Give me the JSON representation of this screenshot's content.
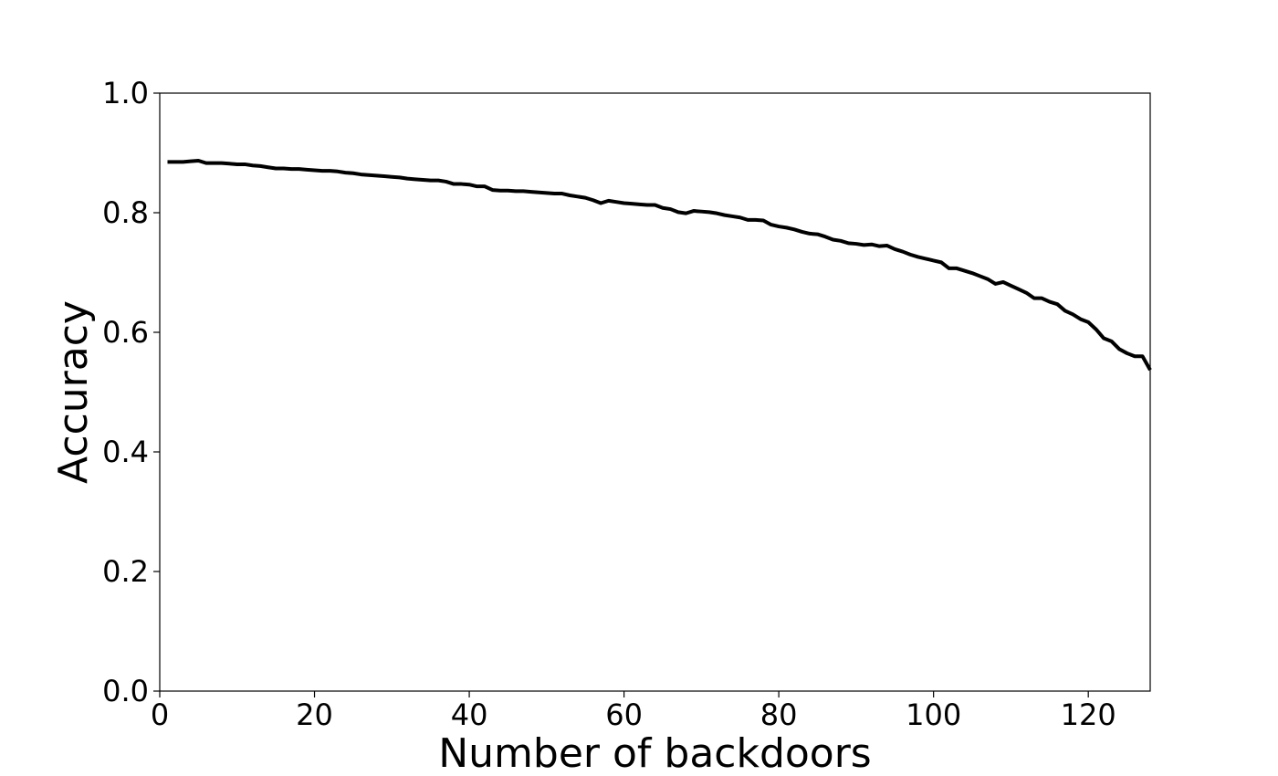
{
  "chart_data": {
    "type": "line",
    "title": "",
    "xlabel": "Number of backdoors",
    "ylabel": "Accuracy",
    "xlim": [
      0,
      128
    ],
    "ylim": [
      0.0,
      1.0
    ],
    "grid": false,
    "legend": "none",
    "x_ticks": [
      0,
      20,
      40,
      60,
      80,
      100,
      120
    ],
    "x_tick_labels": [
      "0",
      "20",
      "40",
      "60",
      "80",
      "100",
      "120"
    ],
    "y_ticks": [
      0.0,
      0.2,
      0.4,
      0.6,
      0.8,
      1.0
    ],
    "y_tick_labels": [
      "0.0",
      "0.2",
      "0.4",
      "0.6",
      "0.8",
      "1.0"
    ],
    "series": [
      {
        "color": "#000000",
        "x": [
          1,
          2,
          3,
          4,
          5,
          6,
          7,
          8,
          9,
          10,
          11,
          12,
          13,
          14,
          15,
          16,
          17,
          18,
          19,
          20,
          21,
          22,
          23,
          24,
          25,
          26,
          27,
          28,
          29,
          30,
          31,
          32,
          33,
          34,
          35,
          36,
          37,
          38,
          39,
          40,
          41,
          42,
          43,
          44,
          45,
          46,
          47,
          48,
          49,
          50,
          51,
          52,
          53,
          54,
          55,
          56,
          57,
          58,
          59,
          60,
          61,
          62,
          63,
          64,
          65,
          66,
          67,
          68,
          69,
          70,
          71,
          72,
          73,
          74,
          75,
          76,
          77,
          78,
          79,
          80,
          81,
          82,
          83,
          84,
          85,
          86,
          87,
          88,
          89,
          90,
          91,
          92,
          93,
          94,
          95,
          96,
          97,
          98,
          99,
          100,
          101,
          102,
          103,
          104,
          105,
          106,
          107,
          108,
          109,
          110,
          111,
          112,
          113,
          114,
          115,
          116,
          117,
          118,
          119,
          120,
          121,
          122,
          123,
          124,
          125,
          126,
          127,
          128
        ],
        "y": [
          0.885,
          0.885,
          0.885,
          0.886,
          0.887,
          0.883,
          0.883,
          0.883,
          0.882,
          0.881,
          0.881,
          0.879,
          0.878,
          0.876,
          0.874,
          0.874,
          0.873,
          0.873,
          0.872,
          0.871,
          0.87,
          0.87,
          0.869,
          0.867,
          0.866,
          0.864,
          0.863,
          0.862,
          0.861,
          0.86,
          0.859,
          0.857,
          0.856,
          0.855,
          0.854,
          0.854,
          0.852,
          0.848,
          0.848,
          0.847,
          0.844,
          0.844,
          0.838,
          0.837,
          0.837,
          0.836,
          0.836,
          0.835,
          0.834,
          0.833,
          0.832,
          0.832,
          0.829,
          0.827,
          0.825,
          0.821,
          0.816,
          0.82,
          0.818,
          0.816,
          0.815,
          0.814,
          0.813,
          0.813,
          0.808,
          0.806,
          0.801,
          0.799,
          0.803,
          0.802,
          0.801,
          0.799,
          0.796,
          0.794,
          0.792,
          0.788,
          0.788,
          0.787,
          0.78,
          0.777,
          0.775,
          0.772,
          0.768,
          0.765,
          0.764,
          0.76,
          0.755,
          0.753,
          0.749,
          0.748,
          0.746,
          0.747,
          0.744,
          0.745,
          0.739,
          0.735,
          0.73,
          0.726,
          0.723,
          0.72,
          0.717,
          0.707,
          0.707,
          0.703,
          0.699,
          0.694,
          0.689,
          0.681,
          0.684,
          0.678,
          0.672,
          0.666,
          0.657,
          0.657,
          0.651,
          0.647,
          0.636,
          0.63,
          0.622,
          0.617,
          0.605,
          0.59,
          0.585,
          0.572,
          0.565,
          0.56,
          0.56,
          0.537
        ]
      }
    ]
  }
}
